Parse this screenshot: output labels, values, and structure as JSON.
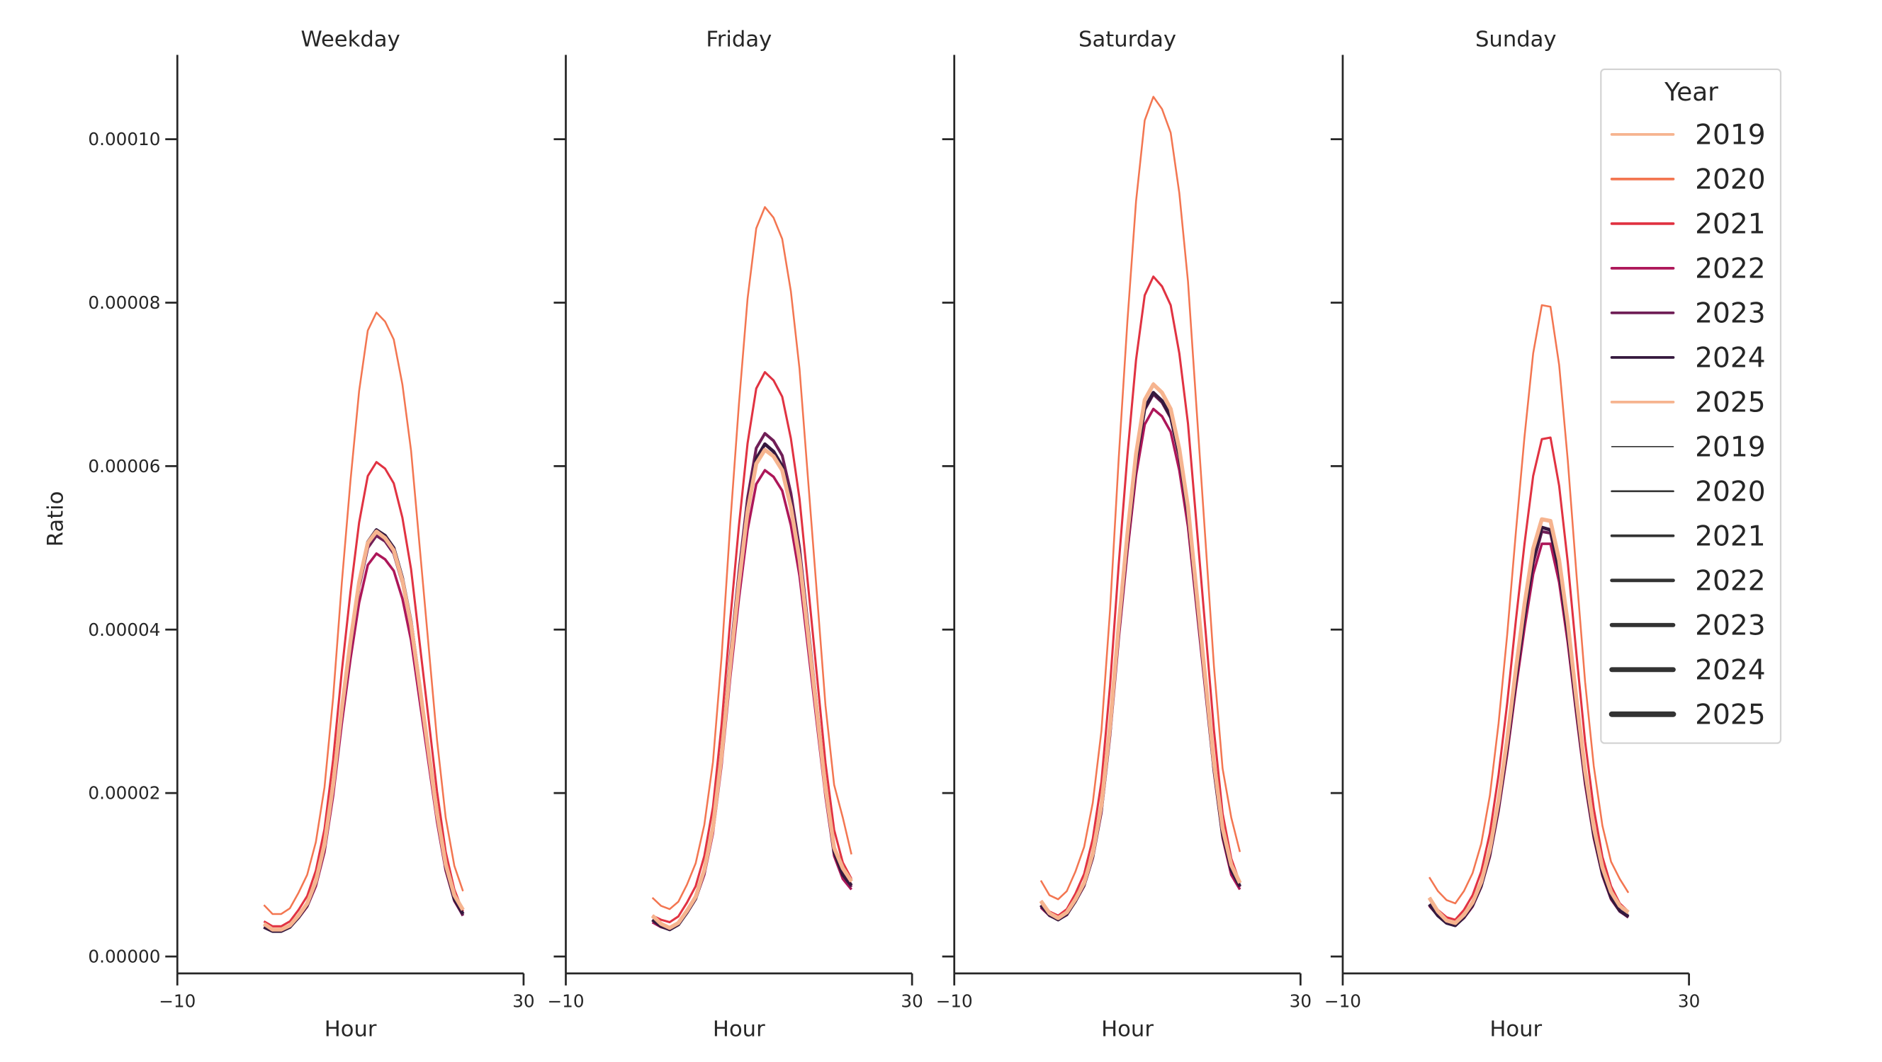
{
  "chart_data": {
    "type": "line",
    "ylabel": "Ratio",
    "xlabel": "Hour",
    "xlim": [
      -10,
      30
    ],
    "ylim": [
      0,
      0.00011
    ],
    "x_ticks": [
      "−10",
      "30"
    ],
    "y_ticks": [
      "0.00000",
      "0.00002",
      "0.00004",
      "0.00006",
      "0.00008",
      "0.00010"
    ],
    "y_tick_values": [
      0,
      2e-05,
      4e-05,
      6e-05,
      8e-05,
      0.0001
    ],
    "grid": false,
    "legend": {
      "title": "Year",
      "placement": "right",
      "hue_entries": [
        "2019",
        "2020",
        "2021",
        "2022",
        "2023",
        "2024",
        "2025"
      ],
      "size_entries": [
        "2019",
        "2020",
        "2021",
        "2022",
        "2023",
        "2024",
        "2025"
      ]
    },
    "colors": {
      "2019": "#f6b48f",
      "2020": "#f37651",
      "2021": "#e13342",
      "2022": "#ad1759",
      "2023": "#701f57",
      "2024": "#35193e",
      "2025": "#f6b48f"
    },
    "x": [
      0,
      1,
      2,
      3,
      4,
      5,
      6,
      7,
      8,
      9,
      10,
      11,
      12,
      13,
      14,
      15,
      16,
      17,
      18,
      19,
      20,
      21,
      22,
      23
    ],
    "panels": [
      {
        "title": "Weekday",
        "series": [
          {
            "name": "2019",
            "values": [
              3.8e-06,
              3.2e-06,
              3.2e-06,
              3.7e-06,
              4.9e-06,
              6.4e-06,
              9e-06,
              1.34e-05,
              2.07e-05,
              3e-05,
              3.83e-05,
              4.56e-05,
              5.05e-05,
              5.2e-05,
              5.13e-05,
              4.98e-05,
              4.61e-05,
              4.07e-05,
              3.3e-05,
              2.51e-05,
              1.73e-05,
              1.1e-05,
              7.1e-06,
              5.5e-06
            ]
          },
          {
            "name": "2020",
            "values": [
              6.3e-06,
              5.2e-06,
              5.2e-06,
              5.9e-06,
              7.8e-06,
              1e-05,
              1.4e-05,
              2.07e-05,
              3.17e-05,
              4.57e-05,
              5.82e-05,
              6.92e-05,
              7.66e-05,
              7.88e-05,
              7.77e-05,
              7.55e-05,
              7e-05,
              6.19e-05,
              5.01e-05,
              3.83e-05,
              2.65e-05,
              1.7e-05,
              1.11e-05,
              8e-06
            ]
          },
          {
            "name": "2021",
            "values": [
              4.3e-06,
              3.7e-06,
              3.7e-06,
              4.3e-06,
              5.7e-06,
              7.4e-06,
              1.05e-05,
              1.56e-05,
              2.41e-05,
              3.49e-05,
              4.46e-05,
              5.31e-05,
              5.88e-05,
              6.05e-05,
              5.97e-05,
              5.79e-05,
              5.37e-05,
              4.74e-05,
              3.83e-05,
              2.93e-05,
              2.02e-05,
              1.28e-05,
              8.2e-06,
              5.5e-06
            ]
          },
          {
            "name": "2022",
            "values": [
              3.6e-06,
              3.1e-06,
              3.1e-06,
              3.6e-06,
              4.7e-06,
              6.1e-06,
              8.6e-06,
              1.28e-05,
              1.97e-05,
              2.85e-05,
              3.64e-05,
              4.33e-05,
              4.79e-05,
              4.93e-05,
              4.86e-05,
              4.72e-05,
              4.38e-05,
              3.87e-05,
              3.13e-05,
              2.39e-05,
              1.65e-05,
              1.05e-05,
              6.8e-06,
              5e-06
            ]
          },
          {
            "name": "2023",
            "values": [
              3.6e-06,
              3.1e-06,
              3.1e-06,
              3.6e-06,
              4.8e-06,
              6.2e-06,
              8.9e-06,
              1.33e-05,
              2.05e-05,
              2.97e-05,
              3.79e-05,
              4.52e-05,
              5e-05,
              5.15e-05,
              5.08e-05,
              4.93e-05,
              4.57e-05,
              4.04e-05,
              3.26e-05,
              2.49e-05,
              1.71e-05,
              1.08e-05,
              7e-06,
              5e-06
            ]
          },
          {
            "name": "2024",
            "values": [
              3.6e-06,
              3.1e-06,
              3.1e-06,
              3.6e-06,
              4.8e-06,
              6.3e-06,
              9e-06,
              1.34e-05,
              2.08e-05,
              3.01e-05,
              3.85e-05,
              4.58e-05,
              5.07e-05,
              5.22e-05,
              5.15e-05,
              5e-05,
              4.63e-05,
              4.09e-05,
              3.31e-05,
              2.52e-05,
              1.73e-05,
              1.1e-05,
              7e-06,
              5.2e-06
            ]
          },
          {
            "name": "2025",
            "values": [
              4e-06,
              3.3e-06,
              3.3e-06,
              3.8e-06,
              5e-06,
              6.5e-06,
              9.2e-06,
              1.37e-05,
              2.1e-05,
              3.03e-05,
              3.86e-05,
              4.58e-05,
              5.06e-05,
              5.2e-05,
              5.12e-05,
              4.97e-05,
              4.6e-05,
              4.06e-05,
              3.3e-05,
              2.52e-05,
              1.75e-05,
              1.13e-05,
              7.5e-06,
              5.7e-06
            ]
          }
        ]
      },
      {
        "title": "Friday",
        "series": [
          {
            "name": "2019",
            "values": [
              4.8e-06,
              3.8e-06,
              3.4e-06,
              4e-06,
              5.5e-06,
              7.2e-06,
              1.05e-05,
              1.57e-05,
              2.45e-05,
              3.56e-05,
              4.56e-05,
              5.44e-05,
              6.02e-05,
              6.2e-05,
              6.11e-05,
              5.93e-05,
              5.49e-05,
              4.85e-05,
              3.91e-05,
              2.97e-05,
              2.03e-05,
              1.3e-05,
              1.05e-05,
              9e-06
            ]
          },
          {
            "name": "2020",
            "values": [
              7.2e-06,
              6.2e-06,
              5.8e-06,
              6.7e-06,
              8.8e-06,
              1.14e-05,
              1.61e-05,
              2.38e-05,
              3.67e-05,
              5.3e-05,
              6.76e-05,
              8.05e-05,
              8.91e-05,
              9.17e-05,
              9.04e-05,
              8.78e-05,
              8.14e-05,
              7.19e-05,
              5.82e-05,
              4.45e-05,
              3.07e-05,
              2.1e-05,
              1.7e-05,
              1.25e-05
            ]
          },
          {
            "name": "2021",
            "values": [
              5e-06,
              4.5e-06,
              4.2e-06,
              4.9e-06,
              6.6e-06,
              8.6e-06,
              1.23e-05,
              1.83e-05,
              2.84e-05,
              4.12e-05,
              5.27e-05,
              6.28e-05,
              6.95e-05,
              7.15e-05,
              7.05e-05,
              6.85e-05,
              6.34e-05,
              5.6e-05,
              4.53e-05,
              3.45e-05,
              2.37e-05,
              1.55e-05,
              1.15e-05,
              9.5e-06
            ]
          },
          {
            "name": "2022",
            "values": [
              4.2e-06,
              3.6e-06,
              3.3e-06,
              3.9e-06,
              5.3e-06,
              7e-06,
              1e-05,
              1.51e-05,
              2.35e-05,
              3.42e-05,
              4.38e-05,
              5.22e-05,
              5.78e-05,
              5.95e-05,
              5.87e-05,
              5.7e-05,
              5.28e-05,
              4.66e-05,
              3.76e-05,
              2.86e-05,
              1.96e-05,
              1.23e-05,
              9.5e-06,
              8.2e-06
            ]
          },
          {
            "name": "2023",
            "values": [
              4.5e-06,
              3.7e-06,
              3.3e-06,
              3.9e-06,
              5.4e-06,
              7.2e-06,
              1.06e-05,
              1.6e-05,
              2.52e-05,
              3.67e-05,
              4.7e-05,
              5.61e-05,
              6.22e-05,
              6.4e-05,
              6.31e-05,
              6.13e-05,
              5.67e-05,
              5e-05,
              4.03e-05,
              3.06e-05,
              2.09e-05,
              1.3e-05,
              1e-05,
              8.5e-06
            ]
          },
          {
            "name": "2024",
            "values": [
              4.5e-06,
              3.7e-06,
              3.3e-06,
              3.9e-06,
              5.4e-06,
              7.1e-06,
              1.04e-05,
              1.58e-05,
              2.47e-05,
              3.6e-05,
              4.6e-05,
              5.5e-05,
              6.09e-05,
              6.27e-05,
              6.18e-05,
              6e-05,
              5.55e-05,
              4.9e-05,
              3.95e-05,
              3e-05,
              2.05e-05,
              1.28e-05,
              1e-05,
              8.7e-06
            ]
          },
          {
            "name": "2025",
            "values": [
              5e-06,
              4e-06,
              3.5e-06,
              4.1e-06,
              5.6e-06,
              7.3e-06,
              1.06e-05,
              1.58e-05,
              2.46e-05,
              3.57e-05,
              4.57e-05,
              5.45e-05,
              6.03e-05,
              6.2e-05,
              6.12e-05,
              5.95e-05,
              5.5e-05,
              4.86e-05,
              3.93e-05,
              3e-05,
              2.06e-05,
              1.33e-05,
              1.08e-05,
              9.2e-06
            ]
          }
        ]
      },
      {
        "title": "Saturday",
        "series": [
          {
            "name": "2019",
            "values": [
              6.6e-06,
              5.2e-06,
              4.6e-06,
              5.3e-06,
              6.9e-06,
              8.9e-06,
              1.25e-05,
              1.84e-05,
              2.82e-05,
              4.07e-05,
              5.18e-05,
              6.17e-05,
              6.83e-05,
              7.02e-05,
              6.92e-05,
              6.72e-05,
              6.23e-05,
              5.51e-05,
              4.45e-05,
              3.4e-05,
              2.35e-05,
              1.55e-05,
              1.1e-05,
              8.8e-06
            ]
          },
          {
            "name": "2020",
            "values": [
              9.3e-06,
              7.5e-06,
              7e-06,
              8e-06,
              1.04e-05,
              1.34e-05,
              1.88e-05,
              2.76e-05,
              4.24e-05,
              6.1e-05,
              7.77e-05,
              9.24e-05,
              0.0001023,
              0.0001052,
              0.0001037,
              0.0001008,
              9.34e-05,
              8.26e-05,
              6.69e-05,
              5.12e-05,
              3.55e-05,
              2.3e-05,
              1.7e-05,
              1.28e-05
            ]
          },
          {
            "name": "2021",
            "values": [
              6.8e-06,
              5.5e-06,
              5e-06,
              5.8e-06,
              7.7e-06,
              1.01e-05,
              1.44e-05,
              2.14e-05,
              3.32e-05,
              4.8e-05,
              6.13e-05,
              7.3e-05,
              8.09e-05,
              8.32e-05,
              8.2e-05,
              7.97e-05,
              7.38e-05,
              6.52e-05,
              5.27e-05,
              4.02e-05,
              2.77e-05,
              1.75e-05,
              1.2e-05,
              9e-06
            ]
          },
          {
            "name": "2022",
            "values": [
              6e-06,
              5e-06,
              4.5e-06,
              5.1e-06,
              6.7e-06,
              8.6e-06,
              1.2e-05,
              1.76e-05,
              2.7e-05,
              3.89e-05,
              4.95e-05,
              5.89e-05,
              6.51e-05,
              6.7e-05,
              6.61e-05,
              6.42e-05,
              5.95e-05,
              5.26e-05,
              4.26e-05,
              3.26e-05,
              2.26e-05,
              1.45e-05,
              1e-05,
              8.2e-06
            ]
          },
          {
            "name": "2023",
            "values": [
              6.2e-06,
              5e-06,
              4.5e-06,
              5.1e-06,
              6.8e-06,
              8.7e-06,
              1.22e-05,
              1.8e-05,
              2.76e-05,
              3.99e-05,
              5.08e-05,
              6.04e-05,
              6.69e-05,
              6.88e-05,
              6.78e-05,
              6.59e-05,
              6.11e-05,
              5.4e-05,
              4.37e-05,
              3.34e-05,
              2.3e-05,
              1.5e-05,
              1.05e-05,
              8.5e-06
            ]
          },
          {
            "name": "2024",
            "values": [
              6.3e-06,
              5.1e-06,
              4.5e-06,
              5.2e-06,
              6.8e-06,
              8.8e-06,
              1.23e-05,
              1.81e-05,
              2.77e-05,
              4e-05,
              5.09e-05,
              6.06e-05,
              6.71e-05,
              6.9e-05,
              6.8e-05,
              6.61e-05,
              6.13e-05,
              5.42e-05,
              4.38e-05,
              3.35e-05,
              2.31e-05,
              1.5e-05,
              1.06e-05,
              8.6e-06
            ]
          },
          {
            "name": "2025",
            "values": [
              6.8e-06,
              5.3e-06,
              4.7e-06,
              5.4e-06,
              7e-06,
              9e-06,
              1.26e-05,
              1.85e-05,
              2.82e-05,
              4.06e-05,
              5.17e-05,
              6.15e-05,
              6.81e-05,
              7e-05,
              6.9e-05,
              6.7e-05,
              6.21e-05,
              5.5e-05,
              4.45e-05,
              3.41e-05,
              2.37e-05,
              1.57e-05,
              1.12e-05,
              9e-06
            ]
          }
        ]
      },
      {
        "title": "Sunday",
        "series": [
          {
            "name": "2019",
            "values": [
              7e-06,
              5.3e-06,
              4.3e-06,
              4e-06,
              5e-06,
              6.5e-06,
              9e-06,
              1.3e-05,
              1.9e-05,
              2.65e-05,
              3.5e-05,
              4.3e-05,
              4.98e-05,
              5.35e-05,
              5.32e-05,
              4.83e-05,
              4.05e-05,
              3.13e-05,
              2.25e-05,
              1.56e-05,
              1.07e-05,
              7.7e-06,
              6e-06,
              5.2e-06
            ]
          },
          {
            "name": "2020",
            "values": [
              9.7e-06,
              8e-06,
              6.9e-06,
              6.5e-06,
              8e-06,
              1.02e-05,
              1.38e-05,
              1.97e-05,
              2.85e-05,
              3.94e-05,
              5.19e-05,
              6.36e-05,
              7.38e-05,
              7.97e-05,
              7.95e-05,
              7.24e-05,
              6.07e-05,
              4.68e-05,
              3.36e-05,
              2.33e-05,
              1.6e-05,
              1.16e-05,
              9.5e-06,
              7.8e-06
            ]
          },
          {
            "name": "2021",
            "values": [
              7.2e-06,
              5.7e-06,
              4.8e-06,
              4.5e-06,
              5.7e-06,
              7.5e-06,
              1.04e-05,
              1.51e-05,
              2.22e-05,
              3.1e-05,
              4.11e-05,
              5.05e-05,
              5.88e-05,
              6.33e-05,
              6.35e-05,
              5.76e-05,
              4.82e-05,
              3.7e-05,
              2.63e-05,
              1.81e-05,
              1.22e-05,
              8.6e-06,
              6.5e-06,
              5.5e-06
            ]
          },
          {
            "name": "2022",
            "values": [
              6.2e-06,
              5e-06,
              4.1e-06,
              3.8e-06,
              4.7e-06,
              6.1e-06,
              8.5e-06,
              1.22e-05,
              1.78e-05,
              2.48e-05,
              3.28e-05,
              4.02e-05,
              4.68e-05,
              5.05e-05,
              5.05e-05,
              4.58e-05,
              3.84e-05,
              2.95e-05,
              2.11e-05,
              1.45e-05,
              9.9e-06,
              7e-06,
              5.5e-06,
              4.8e-06
            ]
          },
          {
            "name": "2023",
            "values": [
              6.3e-06,
              5e-06,
              4.1e-06,
              3.8e-06,
              4.8e-06,
              6.2e-06,
              8.6e-06,
              1.25e-05,
              1.83e-05,
              2.55e-05,
              3.37e-05,
              4.14e-05,
              4.81e-05,
              5.2e-05,
              5.18e-05,
              4.7e-05,
              3.94e-05,
              3.03e-05,
              2.17e-05,
              1.5e-05,
              1.02e-05,
              7.2e-06,
              5.6e-06,
              4.8e-06
            ]
          },
          {
            "name": "2024",
            "values": [
              6.4e-06,
              5e-06,
              4.1e-06,
              3.8e-06,
              4.8e-06,
              6.3e-06,
              8.7e-06,
              1.26e-05,
              1.84e-05,
              2.57e-05,
              3.4e-05,
              4.18e-05,
              4.86e-05,
              5.25e-05,
              5.22e-05,
              4.73e-05,
              3.97e-05,
              3.05e-05,
              2.19e-05,
              1.5e-05,
              1.02e-05,
              7.2e-06,
              5.6e-06,
              4.9e-06
            ]
          },
          {
            "name": "2025",
            "values": [
              7.2e-06,
              5.5e-06,
              4.4e-06,
              4.1e-06,
              5.1e-06,
              6.6e-06,
              9.1e-06,
              1.31e-05,
              1.91e-05,
              2.66e-05,
              3.51e-05,
              4.31e-05,
              4.99e-05,
              5.35e-05,
              5.33e-05,
              4.85e-05,
              4.08e-05,
              3.15e-05,
              2.27e-05,
              1.58e-05,
              1.09e-05,
              7.9e-06,
              6.2e-06,
              5.4e-06
            ]
          }
        ]
      }
    ]
  }
}
